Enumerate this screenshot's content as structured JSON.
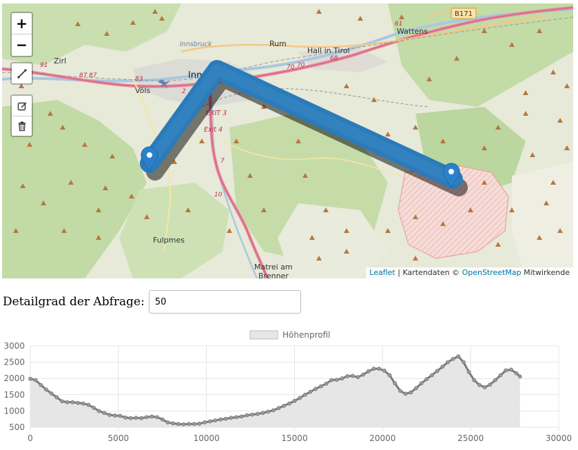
{
  "map": {
    "zoom_in_label": "+",
    "zoom_out_label": "−",
    "labels": {
      "rum": "Rum",
      "wattens": "Wattens",
      "hall": "Hall in Tirol",
      "zirl": "Zirl",
      "vols": "Völs",
      "innsbruck_small": "Innsbruck",
      "innsbruck": "Inn",
      "fulpmes": "Fulpmes",
      "matrei": "Matrei am",
      "brenner": "Brenner",
      "exit3": "EXIT 3",
      "exit4": "Exit 4",
      "b171": "B171",
      "r61": "61",
      "r91": "91",
      "r87": "87",
      "r87b": "87",
      "r83": "83",
      "r70": "70",
      "r70b": "70",
      "r68": "68",
      "r7": "7",
      "r10": "10",
      "r2": "2"
    },
    "route": {
      "color": "#2b7bba",
      "start_marker": "route-start",
      "end_marker": "route-end"
    },
    "icons": {
      "zoom_in": "plus-icon",
      "zoom_out": "minus-icon",
      "draw_line": "polyline-icon",
      "edit": "edit-icon",
      "delete": "trash-icon",
      "marker": "map-marker-icon",
      "peak": "triangle-peak-icon"
    }
  },
  "attribution": {
    "leaflet": "Leaflet",
    "separator": " | Kartendaten © ",
    "osm": "OpenStreetMap",
    "suffix": " Mitwirkende"
  },
  "detail": {
    "label": "Detailgrad der Abfrage:",
    "value": "50"
  },
  "chart_data": {
    "type": "area",
    "legend": [
      "Höhenprofil"
    ],
    "legend_position": "top",
    "series": [
      {
        "name": "Höhenprofil",
        "x": [
          0,
          300,
          600,
          900,
          1200,
          1500,
          1800,
          2100,
          2400,
          2700,
          3000,
          3300,
          3600,
          3900,
          4200,
          4500,
          4800,
          5100,
          5400,
          5700,
          6000,
          6300,
          6600,
          6900,
          7200,
          7500,
          7800,
          8100,
          8400,
          8700,
          9000,
          9300,
          9600,
          9900,
          10200,
          10500,
          10800,
          11100,
          11400,
          11700,
          12000,
          12300,
          12600,
          12900,
          13200,
          13500,
          13800,
          14100,
          14400,
          14700,
          15000,
          15300,
          15600,
          15900,
          16200,
          16500,
          16800,
          17100,
          17400,
          17700,
          18000,
          18300,
          18600,
          18900,
          19200,
          19500,
          19800,
          20100,
          20400,
          20700,
          21000,
          21300,
          21600,
          21900,
          22200,
          22500,
          22800,
          23100,
          23400,
          23700,
          24000,
          24300,
          24600,
          24900,
          25200,
          25500,
          25800,
          26100,
          26400,
          26700,
          27000,
          27300,
          27600,
          27800
        ],
        "values": [
          1990,
          1950,
          1800,
          1660,
          1540,
          1420,
          1300,
          1270,
          1270,
          1250,
          1230,
          1190,
          1100,
          1000,
          940,
          880,
          860,
          850,
          800,
          780,
          790,
          780,
          810,
          830,
          810,
          740,
          650,
          620,
          600,
          590,
          600,
          600,
          610,
          650,
          680,
          710,
          740,
          760,
          790,
          810,
          830,
          870,
          890,
          910,
          940,
          980,
          1020,
          1090,
          1160,
          1230,
          1310,
          1400,
          1500,
          1590,
          1680,
          1760,
          1840,
          1950,
          1960,
          2000,
          2070,
          2080,
          2040,
          2120,
          2220,
          2300,
          2300,
          2240,
          2100,
          1850,
          1620,
          1530,
          1570,
          1700,
          1850,
          1980,
          2100,
          2230,
          2360,
          2500,
          2600,
          2680,
          2500,
          2200,
          1950,
          1800,
          1730,
          1810,
          1950,
          2100,
          2250,
          2270,
          2160,
          2060
        ]
      }
    ],
    "xlim": [
      0,
      30000
    ],
    "ylim": [
      500,
      3000
    ],
    "x_ticks": [
      "0",
      "5000",
      "10000",
      "15000",
      "20000",
      "25000",
      "30000"
    ],
    "y_ticks": [
      "500",
      "1000",
      "1500",
      "2000",
      "2500",
      "3000"
    ],
    "grid": true,
    "line_color": "#7a7a7a",
    "fill_color": "#e6e6e6"
  }
}
